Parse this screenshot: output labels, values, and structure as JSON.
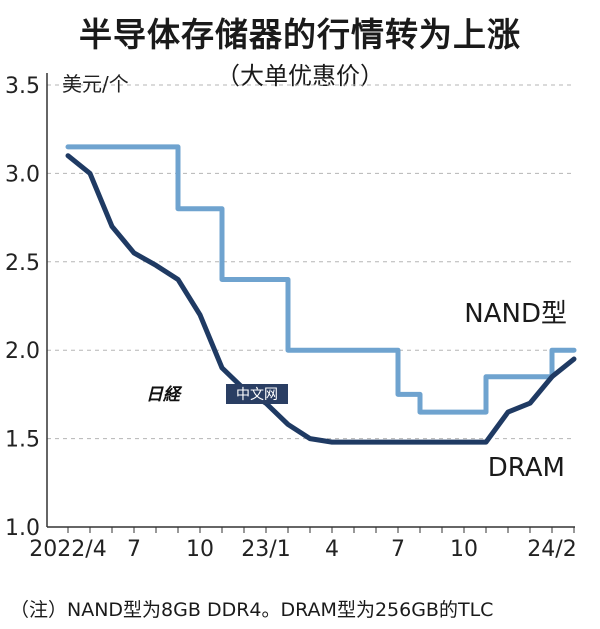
{
  "title": "半导体存储器的行情转为上涨",
  "subtitle": "（大单优惠价）",
  "footnote": "（注）NAND型为8GB DDR4。DRAM型为256GB的TLC",
  "watermark": "日経中文网",
  "chart_data": {
    "type": "line",
    "ylabel": "美元/个",
    "ylim": [
      1.0,
      3.5
    ],
    "yticks": [
      "1.0",
      "1.5",
      "2.0",
      "2.5",
      "3.0",
      "3.5"
    ],
    "x_ticks": [
      {
        "label": "2022/4",
        "month": 0
      },
      {
        "label": "7",
        "month": 3
      },
      {
        "label": "10",
        "month": 6
      },
      {
        "label": "23/1",
        "month": 9
      },
      {
        "label": "4",
        "month": 12
      },
      {
        "label": "7",
        "month": 15
      },
      {
        "label": "10",
        "month": 18
      },
      {
        "label": "24/2",
        "month": 22
      }
    ],
    "grid": true,
    "series": [
      {
        "name": "NAND型",
        "color": "#6fa3cf",
        "step": true,
        "points": [
          [
            0,
            3.15
          ],
          [
            1,
            3.15
          ],
          [
            2,
            3.15
          ],
          [
            3,
            3.15
          ],
          [
            4,
            3.15
          ],
          [
            5,
            2.8
          ],
          [
            6,
            2.8
          ],
          [
            7,
            2.4
          ],
          [
            8,
            2.4
          ],
          [
            9,
            2.4
          ],
          [
            10,
            2.0
          ],
          [
            11,
            2.0
          ],
          [
            12,
            2.0
          ],
          [
            13,
            2.0
          ],
          [
            14,
            2.0
          ],
          [
            15,
            1.75
          ],
          [
            16,
            1.65
          ],
          [
            17,
            1.65
          ],
          [
            18,
            1.65
          ],
          [
            19,
            1.85
          ],
          [
            20,
            1.85
          ],
          [
            21,
            1.85
          ],
          [
            22,
            2.0
          ],
          [
            23,
            2.0
          ]
        ]
      },
      {
        "name": "DRAM",
        "color": "#1f3a63",
        "step": false,
        "points": [
          [
            0,
            3.1
          ],
          [
            1,
            3.0
          ],
          [
            2,
            2.7
          ],
          [
            3,
            2.55
          ],
          [
            4,
            2.48
          ],
          [
            5,
            2.4
          ],
          [
            6,
            2.2
          ],
          [
            7,
            1.9
          ],
          [
            8,
            1.78
          ],
          [
            9,
            1.7
          ],
          [
            10,
            1.58
          ],
          [
            11,
            1.5
          ],
          [
            12,
            1.48
          ],
          [
            13,
            1.48
          ],
          [
            14,
            1.48
          ],
          [
            15,
            1.48
          ],
          [
            16,
            1.48
          ],
          [
            17,
            1.48
          ],
          [
            18,
            1.48
          ],
          [
            19,
            1.48
          ],
          [
            20,
            1.65
          ],
          [
            21,
            1.7
          ],
          [
            22,
            1.85
          ],
          [
            23,
            1.95
          ]
        ]
      }
    ]
  }
}
